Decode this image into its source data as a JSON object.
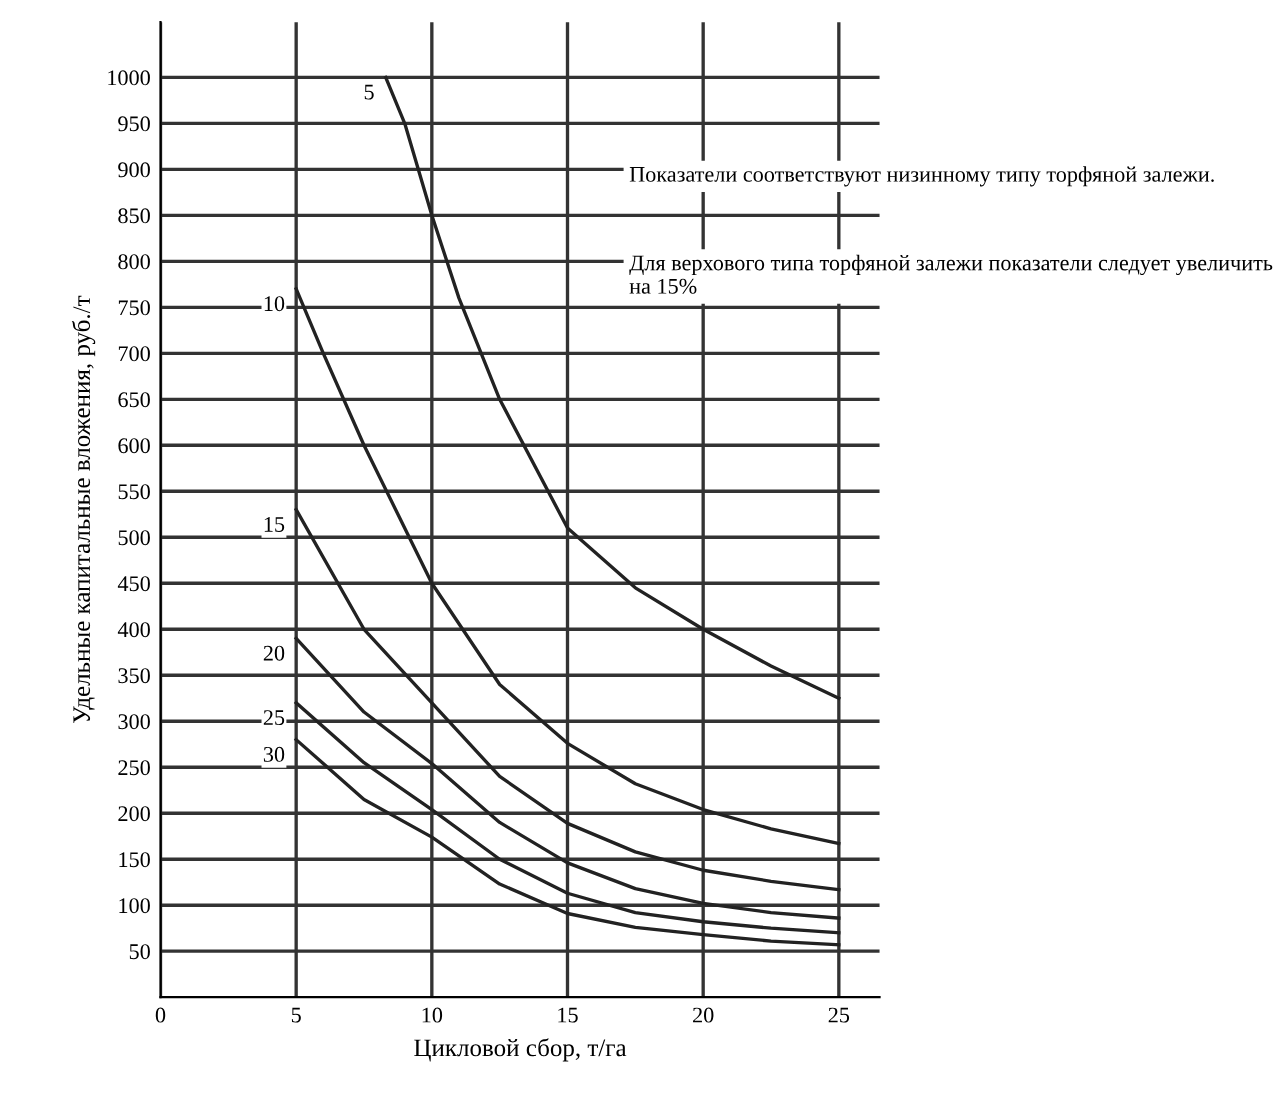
{
  "chart_data": {
    "type": "line",
    "xlabel": "Цикловой сбор, т/га",
    "ylabel": "Удельные капитальные вложения, руб./т",
    "annotations": [
      "Показатели соответствуют низинному типу торфяной залежи.",
      "Для верхового типа торфяной залежи показатели следует увеличить на 15%"
    ],
    "series": [
      {
        "name": "5",
        "color": "#222222",
        "x": [
          8.3,
          9,
          10,
          11,
          12.5,
          15,
          17.5,
          20,
          22.5,
          25
        ],
        "values": [
          1000,
          950,
          850,
          760,
          650,
          510,
          445,
          400,
          360,
          325
        ]
      },
      {
        "name": "10",
        "color": "#222222",
        "x": [
          5,
          6,
          7.5,
          10,
          12.5,
          15,
          17.5,
          20,
          22.5,
          25
        ],
        "values": [
          770,
          700,
          600,
          450,
          340,
          276,
          232,
          204,
          183,
          167
        ]
      },
      {
        "name": "15",
        "color": "#222222",
        "x": [
          5,
          7.5,
          10,
          12.5,
          15,
          17.5,
          20,
          22.5,
          25
        ],
        "values": [
          530,
          400,
          320,
          240,
          189,
          158,
          138,
          126,
          117
        ]
      },
      {
        "name": "20",
        "color": "#222222",
        "x": [
          5,
          7.5,
          10,
          12.5,
          15,
          17.5,
          20,
          22.5,
          25
        ],
        "values": [
          390,
          310,
          254,
          190,
          146,
          118,
          102,
          92,
          86
        ]
      },
      {
        "name": "25",
        "color": "#222222",
        "x": [
          5,
          7.5,
          10,
          12.5,
          15,
          17.5,
          20,
          22.5,
          25
        ],
        "values": [
          320,
          255,
          204,
          150,
          113,
          92,
          82,
          75,
          70
        ]
      },
      {
        "name": "30",
        "color": "#222222",
        "x": [
          5,
          7.5,
          10,
          12.5,
          15,
          17.5,
          20,
          22.5,
          25
        ],
        "values": [
          280,
          215,
          174,
          123,
          91,
          76,
          68,
          61,
          57
        ]
      }
    ],
    "xlim": [
      0,
      26.5
    ],
    "xticks": [
      0,
      5,
      10,
      15,
      20,
      25
    ],
    "ylim": [
      0,
      1060
    ],
    "yticks": [
      50,
      100,
      150,
      200,
      250,
      300,
      350,
      400,
      450,
      500,
      550,
      600,
      650,
      700,
      750,
      800,
      850,
      900,
      950,
      1000
    ],
    "grid": true,
    "legend": false,
    "marker": "none",
    "line_style": "solid"
  }
}
